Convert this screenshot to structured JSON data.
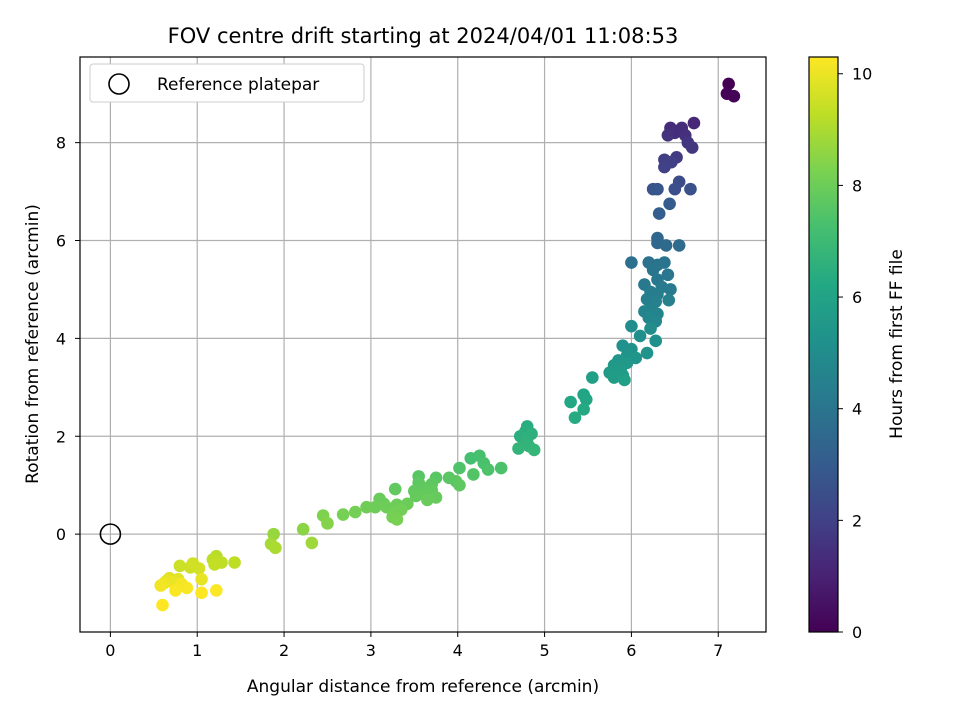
{
  "chart_data": {
    "type": "scatter",
    "title": "FOV centre drift starting at 2024/04/01 11:08:53",
    "xlabel": "Angular distance from reference (arcmin)",
    "ylabel": "Rotation from reference (arcmin)",
    "xlim": [
      -0.35,
      7.55
    ],
    "ylim": [
      -2.0,
      9.75
    ],
    "xticks": [
      0,
      1,
      2,
      3,
      4,
      5,
      6,
      7
    ],
    "yticks": [
      0,
      2,
      4,
      6,
      8
    ],
    "grid": true,
    "legend": {
      "position": "top-left",
      "entries": [
        "Reference platepar"
      ]
    },
    "reference_point": {
      "x": 0,
      "y": 0,
      "label": "Reference platepar",
      "marker": "open-circle"
    },
    "colorbar": {
      "label": "Hours from first FF file",
      "colormap": "viridis",
      "range": [
        0,
        10.3
      ],
      "ticks": [
        0,
        2,
        4,
        6,
        8,
        10
      ]
    },
    "series": [
      {
        "points": [
          {
            "x": 7.12,
            "y": 9.2,
            "c": 0.0
          },
          {
            "x": 7.1,
            "y": 9.0,
            "c": 0.05
          },
          {
            "x": 7.18,
            "y": 8.95,
            "c": 0.1
          },
          {
            "x": 6.72,
            "y": 8.4,
            "c": 1.2
          },
          {
            "x": 6.45,
            "y": 8.3,
            "c": 1.3
          },
          {
            "x": 6.58,
            "y": 8.3,
            "c": 1.35
          },
          {
            "x": 6.5,
            "y": 8.2,
            "c": 1.4
          },
          {
            "x": 6.62,
            "y": 8.15,
            "c": 1.45
          },
          {
            "x": 6.42,
            "y": 8.15,
            "c": 1.5
          },
          {
            "x": 6.65,
            "y": 8.0,
            "c": 1.6
          },
          {
            "x": 6.7,
            "y": 7.9,
            "c": 1.7
          },
          {
            "x": 6.52,
            "y": 7.7,
            "c": 1.8
          },
          {
            "x": 6.38,
            "y": 7.65,
            "c": 1.9
          },
          {
            "x": 6.46,
            "y": 7.6,
            "c": 1.95
          },
          {
            "x": 6.38,
            "y": 7.5,
            "c": 2.0
          },
          {
            "x": 6.55,
            "y": 7.2,
            "c": 2.4
          },
          {
            "x": 6.5,
            "y": 7.05,
            "c": 2.5
          },
          {
            "x": 6.68,
            "y": 7.05,
            "c": 2.6
          },
          {
            "x": 6.25,
            "y": 7.05,
            "c": 2.7
          },
          {
            "x": 6.3,
            "y": 7.05,
            "c": 2.8
          },
          {
            "x": 6.44,
            "y": 6.75,
            "c": 3.0
          },
          {
            "x": 6.32,
            "y": 6.55,
            "c": 3.1
          },
          {
            "x": 6.3,
            "y": 6.05,
            "c": 3.4
          },
          {
            "x": 6.3,
            "y": 5.95,
            "c": 3.5
          },
          {
            "x": 6.4,
            "y": 5.9,
            "c": 3.55
          },
          {
            "x": 6.55,
            "y": 5.9,
            "c": 3.6
          },
          {
            "x": 6.0,
            "y": 5.55,
            "c": 3.8
          },
          {
            "x": 6.2,
            "y": 5.55,
            "c": 3.85
          },
          {
            "x": 6.3,
            "y": 5.5,
            "c": 3.9
          },
          {
            "x": 6.38,
            "y": 5.55,
            "c": 3.95
          },
          {
            "x": 6.25,
            "y": 5.4,
            "c": 4.0
          },
          {
            "x": 6.42,
            "y": 5.3,
            "c": 4.05
          },
          {
            "x": 6.3,
            "y": 5.2,
            "c": 4.1
          },
          {
            "x": 6.15,
            "y": 5.1,
            "c": 4.15
          },
          {
            "x": 6.35,
            "y": 5.05,
            "c": 4.2
          },
          {
            "x": 6.45,
            "y": 5.0,
            "c": 4.25
          },
          {
            "x": 6.22,
            "y": 4.95,
            "c": 4.3
          },
          {
            "x": 6.3,
            "y": 4.9,
            "c": 4.35
          },
          {
            "x": 6.18,
            "y": 4.8,
            "c": 4.4
          },
          {
            "x": 6.28,
            "y": 4.75,
            "c": 4.45
          },
          {
            "x": 6.43,
            "y": 4.78,
            "c": 4.5
          },
          {
            "x": 6.22,
            "y": 4.6,
            "c": 4.55
          },
          {
            "x": 6.15,
            "y": 4.55,
            "c": 4.6
          },
          {
            "x": 6.3,
            "y": 4.5,
            "c": 4.65
          },
          {
            "x": 6.2,
            "y": 4.42,
            "c": 4.7
          },
          {
            "x": 6.28,
            "y": 4.35,
            "c": 4.75
          },
          {
            "x": 6.0,
            "y": 4.25,
            "c": 5.0
          },
          {
            "x": 6.22,
            "y": 4.2,
            "c": 5.05
          },
          {
            "x": 6.1,
            "y": 4.05,
            "c": 5.1
          },
          {
            "x": 6.28,
            "y": 3.95,
            "c": 5.15
          },
          {
            "x": 5.9,
            "y": 3.85,
            "c": 5.2
          },
          {
            "x": 6.0,
            "y": 3.78,
            "c": 5.25
          },
          {
            "x": 6.18,
            "y": 3.7,
            "c": 5.3
          },
          {
            "x": 5.95,
            "y": 3.65,
            "c": 5.35
          },
          {
            "x": 6.05,
            "y": 3.6,
            "c": 5.4
          },
          {
            "x": 5.85,
            "y": 3.55,
            "c": 5.45
          },
          {
            "x": 5.95,
            "y": 3.5,
            "c": 5.5
          },
          {
            "x": 5.8,
            "y": 3.45,
            "c": 5.55
          },
          {
            "x": 5.88,
            "y": 3.4,
            "c": 5.6
          },
          {
            "x": 5.75,
            "y": 3.3,
            "c": 5.65
          },
          {
            "x": 5.9,
            "y": 3.25,
            "c": 5.7
          },
          {
            "x": 5.8,
            "y": 3.2,
            "c": 5.75
          },
          {
            "x": 5.92,
            "y": 3.15,
            "c": 5.8
          },
          {
            "x": 5.55,
            "y": 3.2,
            "c": 5.85
          },
          {
            "x": 5.45,
            "y": 2.85,
            "c": 6.1
          },
          {
            "x": 5.48,
            "y": 2.75,
            "c": 6.15
          },
          {
            "x": 5.3,
            "y": 2.7,
            "c": 6.2
          },
          {
            "x": 5.45,
            "y": 2.55,
            "c": 6.25
          },
          {
            "x": 5.35,
            "y": 2.38,
            "c": 6.3
          },
          {
            "x": 4.8,
            "y": 2.2,
            "c": 6.4
          },
          {
            "x": 4.78,
            "y": 2.1,
            "c": 6.45
          },
          {
            "x": 4.72,
            "y": 2.0,
            "c": 6.5
          },
          {
            "x": 4.85,
            "y": 2.05,
            "c": 6.55
          },
          {
            "x": 4.8,
            "y": 1.95,
            "c": 6.6
          },
          {
            "x": 4.78,
            "y": 1.85,
            "c": 6.65
          },
          {
            "x": 4.82,
            "y": 1.8,
            "c": 6.7
          },
          {
            "x": 4.7,
            "y": 1.75,
            "c": 6.75
          },
          {
            "x": 4.88,
            "y": 1.72,
            "c": 6.8
          },
          {
            "x": 4.15,
            "y": 1.55,
            "c": 7.2
          },
          {
            "x": 4.25,
            "y": 1.6,
            "c": 7.25
          },
          {
            "x": 4.3,
            "y": 1.45,
            "c": 7.3
          },
          {
            "x": 4.5,
            "y": 1.35,
            "c": 7.35
          },
          {
            "x": 4.35,
            "y": 1.32,
            "c": 7.4
          },
          {
            "x": 4.02,
            "y": 1.35,
            "c": 7.45
          },
          {
            "x": 4.18,
            "y": 1.22,
            "c": 7.5
          },
          {
            "x": 3.55,
            "y": 1.18,
            "c": 7.6
          },
          {
            "x": 3.75,
            "y": 1.15,
            "c": 7.62
          },
          {
            "x": 3.9,
            "y": 1.15,
            "c": 7.65
          },
          {
            "x": 3.98,
            "y": 1.08,
            "c": 7.68
          },
          {
            "x": 3.55,
            "y": 1.05,
            "c": 7.7
          },
          {
            "x": 3.7,
            "y": 1.02,
            "c": 7.72
          },
          {
            "x": 4.02,
            "y": 1.0,
            "c": 7.74
          },
          {
            "x": 3.6,
            "y": 0.95,
            "c": 7.76
          },
          {
            "x": 3.28,
            "y": 0.92,
            "c": 7.78
          },
          {
            "x": 3.7,
            "y": 0.9,
            "c": 7.8
          },
          {
            "x": 3.5,
            "y": 0.88,
            "c": 7.82
          },
          {
            "x": 3.62,
            "y": 0.8,
            "c": 7.84
          },
          {
            "x": 3.52,
            "y": 0.78,
            "c": 7.86
          },
          {
            "x": 3.75,
            "y": 0.75,
            "c": 7.88
          },
          {
            "x": 3.1,
            "y": 0.72,
            "c": 7.9
          },
          {
            "x": 3.65,
            "y": 0.7,
            "c": 7.92
          },
          {
            "x": 3.15,
            "y": 0.62,
            "c": 7.94
          },
          {
            "x": 3.3,
            "y": 0.6,
            "c": 7.96
          },
          {
            "x": 3.42,
            "y": 0.62,
            "c": 7.98
          },
          {
            "x": 3.18,
            "y": 0.55,
            "c": 8.0
          },
          {
            "x": 3.05,
            "y": 0.55,
            "c": 8.02
          },
          {
            "x": 2.95,
            "y": 0.55,
            "c": 8.05
          },
          {
            "x": 3.35,
            "y": 0.5,
            "c": 8.08
          },
          {
            "x": 3.28,
            "y": 0.45,
            "c": 8.1
          },
          {
            "x": 2.82,
            "y": 0.45,
            "c": 8.12
          },
          {
            "x": 3.25,
            "y": 0.35,
            "c": 8.15
          },
          {
            "x": 2.68,
            "y": 0.4,
            "c": 8.18
          },
          {
            "x": 3.3,
            "y": 0.3,
            "c": 8.2
          },
          {
            "x": 2.45,
            "y": 0.38,
            "c": 8.3
          },
          {
            "x": 2.5,
            "y": 0.22,
            "c": 8.4
          },
          {
            "x": 2.22,
            "y": 0.1,
            "c": 8.5
          },
          {
            "x": 1.88,
            "y": 0.0,
            "c": 8.7
          },
          {
            "x": 2.32,
            "y": -0.18,
            "c": 8.8
          },
          {
            "x": 1.85,
            "y": -0.2,
            "c": 8.9
          },
          {
            "x": 1.9,
            "y": -0.28,
            "c": 9.0
          },
          {
            "x": 1.22,
            "y": -0.45,
            "c": 9.2
          },
          {
            "x": 1.18,
            "y": -0.52,
            "c": 9.25
          },
          {
            "x": 1.28,
            "y": -0.58,
            "c": 9.3
          },
          {
            "x": 1.43,
            "y": -0.58,
            "c": 9.28
          },
          {
            "x": 1.2,
            "y": -0.62,
            "c": 9.35
          },
          {
            "x": 0.8,
            "y": -0.65,
            "c": 9.5
          },
          {
            "x": 0.92,
            "y": -0.68,
            "c": 9.55
          },
          {
            "x": 1.02,
            "y": -0.7,
            "c": 9.6
          },
          {
            "x": 0.95,
            "y": -0.6,
            "c": 9.58
          },
          {
            "x": 0.68,
            "y": -0.9,
            "c": 9.8
          },
          {
            "x": 0.78,
            "y": -0.92,
            "c": 9.85
          },
          {
            "x": 0.65,
            "y": -0.95,
            "c": 9.9
          },
          {
            "x": 1.05,
            "y": -0.92,
            "c": 9.95
          },
          {
            "x": 0.72,
            "y": -0.98,
            "c": 10.0
          },
          {
            "x": 0.62,
            "y": -1.0,
            "c": 10.05
          },
          {
            "x": 0.58,
            "y": -1.05,
            "c": 10.1
          },
          {
            "x": 0.82,
            "y": -1.02,
            "c": 10.15
          },
          {
            "x": 0.88,
            "y": -1.1,
            "c": 10.2
          },
          {
            "x": 0.75,
            "y": -1.15,
            "c": 10.25
          },
          {
            "x": 1.22,
            "y": -1.15,
            "c": 10.28
          },
          {
            "x": 1.05,
            "y": -1.2,
            "c": 10.3
          },
          {
            "x": 0.6,
            "y": -1.45,
            "c": 10.3
          }
        ]
      }
    ]
  }
}
